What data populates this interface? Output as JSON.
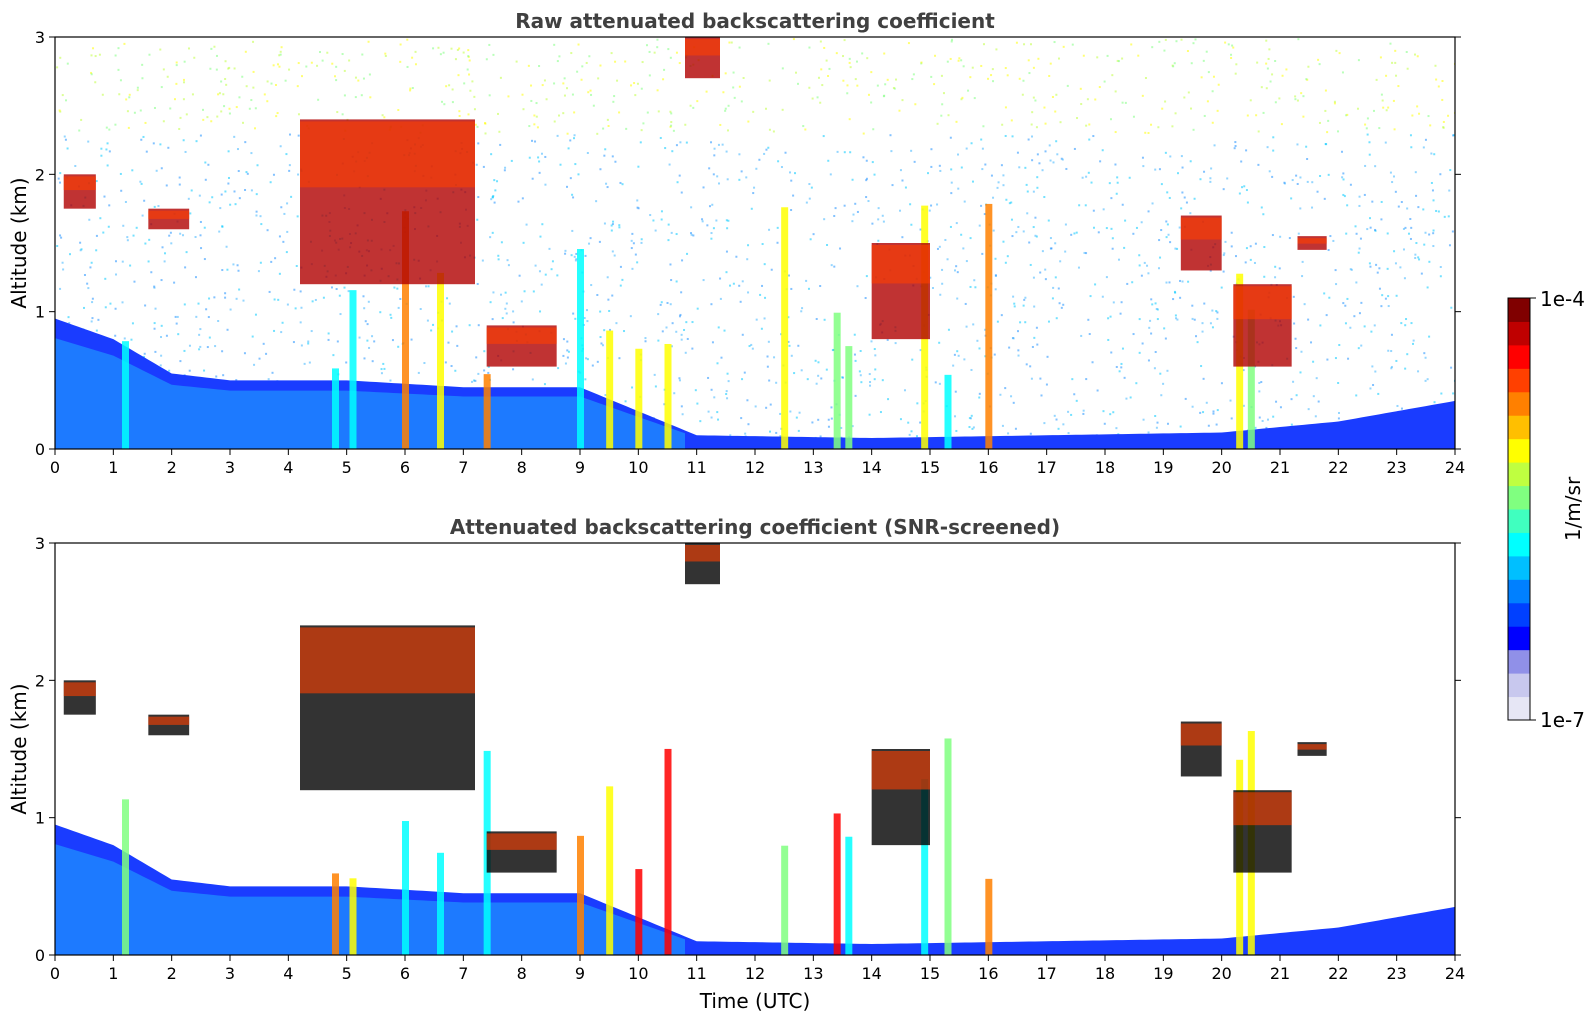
{
  "chart_data": [
    {
      "type": "heatmap",
      "title": "Raw attenuated backscattering coefficient",
      "xlabel": "",
      "ylabel": "Altitude (km)",
      "xlim": [
        0,
        24
      ],
      "ylim": [
        0,
        3
      ],
      "xticks": [
        0,
        1,
        2,
        3,
        4,
        5,
        6,
        7,
        8,
        9,
        10,
        11,
        12,
        13,
        14,
        15,
        16,
        17,
        18,
        19,
        20,
        21,
        22,
        23,
        24
      ],
      "yticks": [
        0,
        1,
        2,
        3
      ],
      "scale": "log",
      "value_range": [
        1e-07,
        0.0001
      ],
      "features": {
        "boundary_layer_top_km": [
          [
            0,
            0.95
          ],
          [
            1,
            0.8
          ],
          [
            2,
            0.55
          ],
          [
            3,
            0.5
          ],
          [
            5,
            0.5
          ],
          [
            7,
            0.45
          ],
          [
            9,
            0.45
          ],
          [
            11,
            0.1
          ],
          [
            14,
            0.08
          ],
          [
            17,
            0.1
          ],
          [
            20,
            0.12
          ],
          [
            22,
            0.2
          ],
          [
            24,
            0.35
          ]
        ],
        "cloud_layers": [
          {
            "t0": 0.15,
            "t1": 0.7,
            "z0": 1.75,
            "z1": 2.0
          },
          {
            "t0": 1.6,
            "t1": 2.3,
            "z0": 1.6,
            "z1": 1.75
          },
          {
            "t0": 4.2,
            "t1": 7.2,
            "z0": 1.2,
            "z1": 2.4
          },
          {
            "t0": 7.4,
            "t1": 8.6,
            "z0": 0.6,
            "z1": 0.9
          },
          {
            "t0": 10.8,
            "t1": 11.4,
            "z0": 2.7,
            "z1": 3.0
          },
          {
            "t0": 14.0,
            "t1": 15.0,
            "z0": 0.8,
            "z1": 1.5
          },
          {
            "t0": 19.3,
            "t1": 20.0,
            "z0": 1.3,
            "z1": 1.7
          },
          {
            "t0": 20.2,
            "t1": 21.2,
            "z0": 0.6,
            "z1": 1.2
          },
          {
            "t0": 21.3,
            "t1": 21.8,
            "z0": 1.45,
            "z1": 1.55
          }
        ],
        "precipitation_shafts_utc": [
          1.2,
          4.8,
          5.1,
          6.0,
          6.6,
          7.4,
          9.0,
          9.5,
          10.0,
          10.5,
          12.5,
          13.4,
          13.6,
          14.9,
          15.3,
          16.0,
          20.3,
          20.5
        ]
      }
    },
    {
      "type": "heatmap",
      "title": "Attenuated backscattering coefficient (SNR-screened)",
      "xlabel": "Time (UTC)",
      "ylabel": "Altitude (km)",
      "xlim": [
        0,
        24
      ],
      "ylim": [
        0,
        3
      ],
      "xticks": [
        0,
        1,
        2,
        3,
        4,
        5,
        6,
        7,
        8,
        9,
        10,
        11,
        12,
        13,
        14,
        15,
        16,
        17,
        18,
        19,
        20,
        21,
        22,
        23,
        24
      ],
      "yticks": [
        0,
        1,
        2,
        3
      ],
      "scale": "log",
      "value_range": [
        1e-07,
        0.0001
      ],
      "screening": "SNR"
    }
  ],
  "colorbar": {
    "label": "1/m/sr",
    "max_label": "1e-4",
    "min_label": "1e-7",
    "colors": [
      "#e6e6f5",
      "#c8c8ee",
      "#9090e8",
      "#0000ff",
      "#0040ff",
      "#0080ff",
      "#00bfff",
      "#00ffff",
      "#40ffbf",
      "#80ff80",
      "#bfff40",
      "#ffff00",
      "#ffbf00",
      "#ff8000",
      "#ff4000",
      "#ff0000",
      "#bf0000",
      "#800000"
    ]
  },
  "colors": {
    "title": "#404040",
    "axis": "#000000",
    "background": "#ffffff",
    "boundary_layer": "#1a3cff",
    "boundary_layer_light": "#1f8fff",
    "noise": [
      "#1e90ff",
      "#3cb4ff",
      "#00c8ff",
      "#7fff7f",
      "#bfff40",
      "#ffff00"
    ]
  }
}
